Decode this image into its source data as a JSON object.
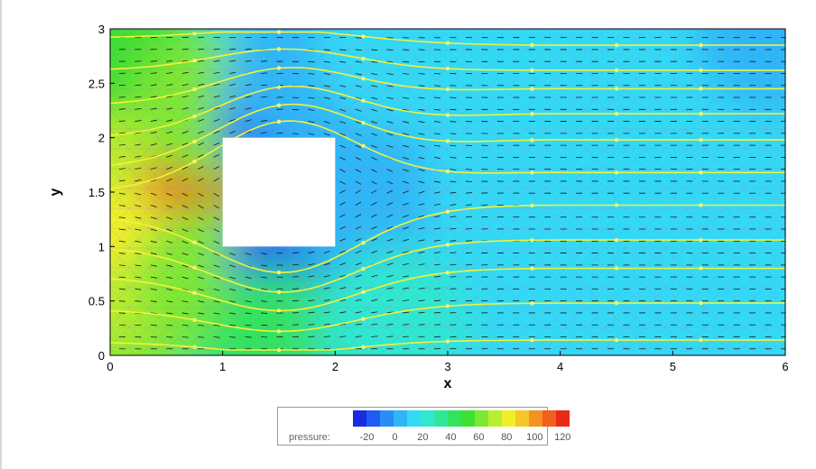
{
  "chart_data": {
    "type": "contour",
    "title": "",
    "xlabel": "x",
    "ylabel": "y",
    "xlim": [
      0,
      6
    ],
    "ylim": [
      0,
      3
    ],
    "x_ticks": [
      "0",
      "1",
      "2",
      "3",
      "4",
      "5",
      "6"
    ],
    "y_ticks": [
      "0",
      "0.5",
      "1",
      "1.5",
      "2",
      "2.5",
      "3"
    ],
    "obstacle": {
      "x": [
        1,
        2
      ],
      "y": [
        1,
        2
      ]
    },
    "variable": "pressure",
    "colorbar": {
      "label": "pressure:",
      "min": -30,
      "max": 125,
      "tick_labels": [
        "-20",
        "0",
        "20",
        "40",
        "60",
        "80",
        "100",
        "120"
      ],
      "colors": [
        "#1a2be0",
        "#1f5cf2",
        "#2a8cf5",
        "#2fb6f7",
        "#33d9f5",
        "#2fe8cf",
        "#2fe69a",
        "#32e35f",
        "#3ee031",
        "#7de831",
        "#b9ee2f",
        "#f0f02a",
        "#f6c628",
        "#f49223",
        "#f0601e",
        "#e82a17"
      ]
    },
    "pressure_field_points": [
      {
        "x": 0.0,
        "y": 0.1,
        "p": 58
      },
      {
        "x": 0.0,
        "y": 0.8,
        "p": 75
      },
      {
        "x": 0.0,
        "y": 1.5,
        "p": 85
      },
      {
        "x": 0.0,
        "y": 2.2,
        "p": 72
      },
      {
        "x": 0.0,
        "y": 2.9,
        "p": 55
      },
      {
        "x": 0.6,
        "y": 1.6,
        "p": 110
      },
      {
        "x": 0.9,
        "y": 1.55,
        "p": 118
      },
      {
        "x": 0.9,
        "y": 2.3,
        "p": 62
      },
      {
        "x": 0.9,
        "y": 0.7,
        "p": 60
      },
      {
        "x": 1.4,
        "y": 2.15,
        "p": -18
      },
      {
        "x": 1.5,
        "y": 0.9,
        "p": -15
      },
      {
        "x": 1.7,
        "y": 2.6,
        "p": 5
      },
      {
        "x": 2.2,
        "y": 1.5,
        "p": 2
      },
      {
        "x": 2.5,
        "y": 2.8,
        "p": 12
      },
      {
        "x": 3.5,
        "y": 1.5,
        "p": 14
      },
      {
        "x": 4.5,
        "y": 2.2,
        "p": 12
      },
      {
        "x": 5.5,
        "y": 0.8,
        "p": 15
      },
      {
        "x": 5.9,
        "y": 2.95,
        "p": 2
      },
      {
        "x": 1.5,
        "y": 0.1,
        "p": 40
      },
      {
        "x": 2.5,
        "y": 0.3,
        "p": 22
      }
    ],
    "streamlines_y_inlet": [
      0.12,
      0.42,
      0.72,
      1.0,
      1.28,
      1.5,
      1.72,
      2.0,
      2.3,
      2.62,
      2.92
    ],
    "streamlines_y_outlet": [
      0.14,
      0.48,
      0.8,
      1.06,
      1.38,
      1.68,
      1.98,
      2.22,
      2.45,
      2.62,
      2.85
    ]
  }
}
